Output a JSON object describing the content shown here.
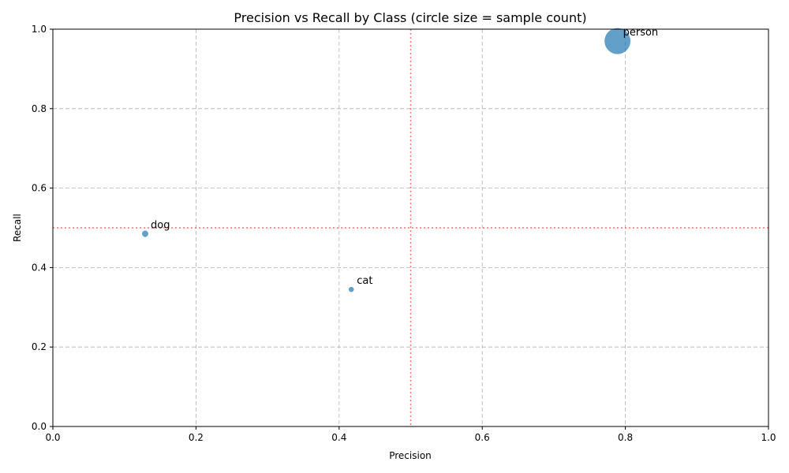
{
  "chart_data": {
    "type": "scatter",
    "title": "Precision vs Recall by Class (circle size = sample count)",
    "xlabel": "Precision",
    "ylabel": "Recall",
    "xlim": [
      0.0,
      1.0
    ],
    "ylim": [
      0.0,
      1.0
    ],
    "xticks": [
      "0.0",
      "0.2",
      "0.4",
      "0.6",
      "0.8",
      "1.0"
    ],
    "yticks": [
      "0.0",
      "0.2",
      "0.4",
      "0.6",
      "0.8",
      "1.0"
    ],
    "grid": true,
    "reference_lines": {
      "x": 0.5,
      "y": 0.5,
      "color": "#ff0000",
      "style": "dotted"
    },
    "marker_color": "#1f77b4",
    "points": [
      {
        "label": "dog",
        "x": 0.129,
        "y": 0.485,
        "size": 18
      },
      {
        "label": "cat",
        "x": 0.417,
        "y": 0.345,
        "size": 12
      },
      {
        "label": "person",
        "x": 0.789,
        "y": 0.97,
        "size": 300
      }
    ]
  }
}
